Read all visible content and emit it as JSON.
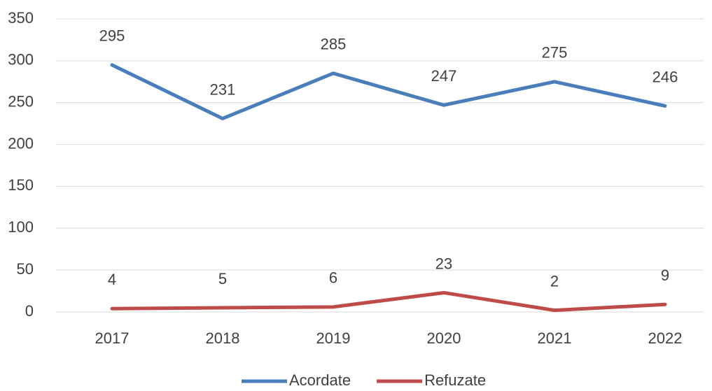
{
  "chart_data": {
    "type": "line",
    "categories": [
      "2017",
      "2018",
      "2019",
      "2020",
      "2021",
      "2022"
    ],
    "series": [
      {
        "name": "Acordate",
        "color": "#4a7ebb",
        "values": [
          295,
          231,
          285,
          247,
          275,
          246
        ]
      },
      {
        "name": "Refuzate",
        "color": "#be4b48",
        "values": [
          4,
          5,
          6,
          23,
          2,
          9
        ]
      }
    ],
    "ylim": [
      0,
      350
    ],
    "yticks": [
      0,
      50,
      100,
      150,
      200,
      250,
      300,
      350
    ],
    "grid": true,
    "legend": "bottom",
    "data_labels": true
  }
}
